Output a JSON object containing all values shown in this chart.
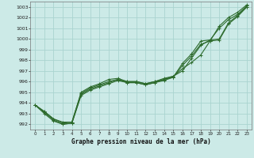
{
  "title": "Graphe pression niveau de la mer (hPa)",
  "bg_color": "#cceae7",
  "grid_color": "#aad4d0",
  "line_color": "#2d6b2d",
  "xlim": [
    -0.5,
    23.5
  ],
  "ylim": [
    991.5,
    1003.5
  ],
  "yticks": [
    992,
    993,
    994,
    995,
    996,
    997,
    998,
    999,
    1000,
    1001,
    1002,
    1003
  ],
  "xticks": [
    0,
    1,
    2,
    3,
    4,
    5,
    6,
    7,
    8,
    9,
    10,
    11,
    12,
    13,
    14,
    15,
    16,
    17,
    18,
    19,
    20,
    21,
    22,
    23
  ],
  "series": [
    [
      993.8,
      993.2,
      992.5,
      992.1,
      992.2,
      995.0,
      995.5,
      995.8,
      996.2,
      996.3,
      996.0,
      996.0,
      995.8,
      996.0,
      996.3,
      996.5,
      997.2,
      997.8,
      998.5,
      999.8,
      1001.2,
      1002.0,
      1002.5,
      1003.2
    ],
    [
      993.8,
      993.2,
      992.5,
      992.2,
      992.2,
      994.9,
      995.4,
      995.7,
      996.0,
      996.2,
      996.0,
      996.0,
      995.8,
      996.0,
      996.2,
      996.5,
      997.0,
      998.2,
      999.4,
      999.9,
      1001.0,
      1001.8,
      1002.3,
      1003.1
    ],
    [
      993.8,
      993.1,
      992.4,
      992.0,
      992.1,
      994.8,
      995.3,
      995.6,
      995.9,
      996.2,
      995.9,
      995.9,
      995.7,
      995.9,
      996.2,
      996.4,
      997.7,
      998.6,
      999.8,
      999.9,
      1000.0,
      1001.5,
      1002.2,
      1003.0
    ],
    [
      993.8,
      993.0,
      992.3,
      992.0,
      992.1,
      994.7,
      995.2,
      995.5,
      995.8,
      996.1,
      995.9,
      995.9,
      995.7,
      995.9,
      996.1,
      996.4,
      997.5,
      998.4,
      999.5,
      999.8,
      999.9,
      1001.4,
      1002.1,
      1003.0
    ]
  ]
}
